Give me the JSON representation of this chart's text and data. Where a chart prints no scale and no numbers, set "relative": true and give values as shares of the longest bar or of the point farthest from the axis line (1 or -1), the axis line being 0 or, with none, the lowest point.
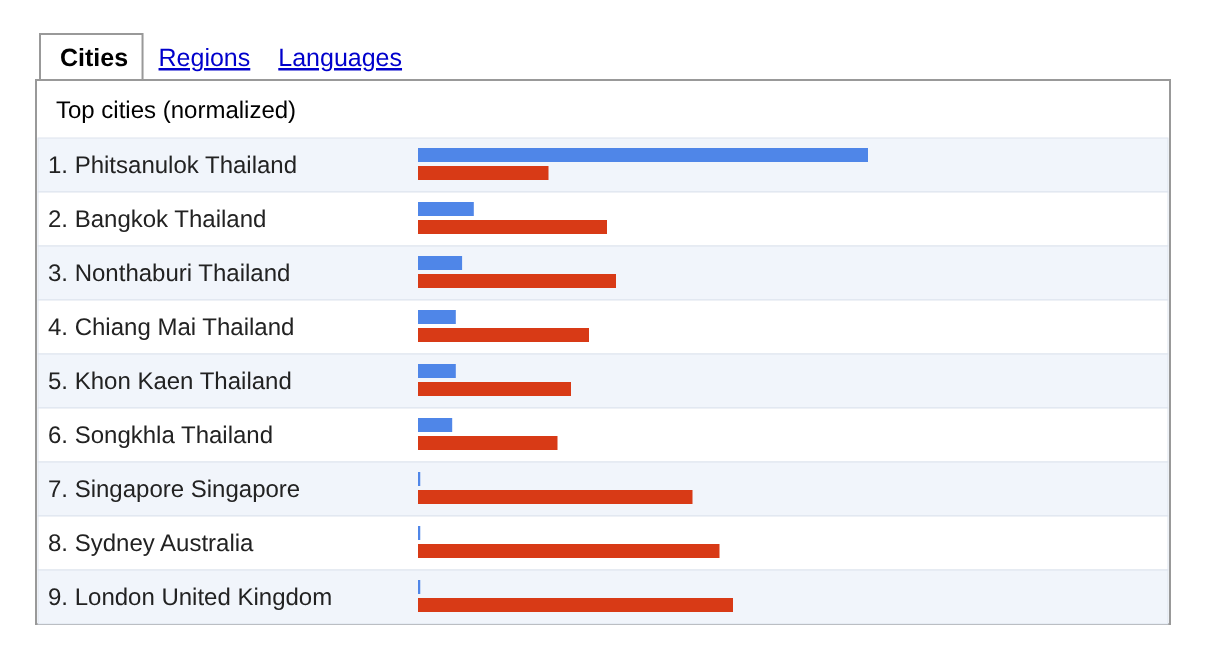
{
  "chart_data": {
    "type": "bar",
    "orientation": "horizontal",
    "relative": true,
    "title": "Top cities (normalized)",
    "annotations": [
      "Cities",
      "Regions",
      "Languages"
    ],
    "categories": [
      "1. Phitsanulok Thailand",
      "2. Bangkok Thailand",
      "3. Nonthaburi Thailand",
      "4. Chiang Mai Thailand",
      "5. Khon Kaen Thailand",
      "6. Songkhla Thailand",
      "7. Singapore Singapore",
      "8. Sydney Australia",
      "9. London United Kingdom"
    ],
    "series": [
      {
        "color": "#4f86e8",
        "values": [
          1,
          0.124,
          0.098,
          0.084,
          0.084,
          0.076,
          0.005,
          0.005,
          0.005
        ]
      },
      {
        "color": "#d83a16",
        "values": [
          0.29,
          0.42,
          0.44,
          0.38,
          0.34,
          0.31,
          0.61,
          0.67,
          0.7
        ]
      }
    ]
  }
}
